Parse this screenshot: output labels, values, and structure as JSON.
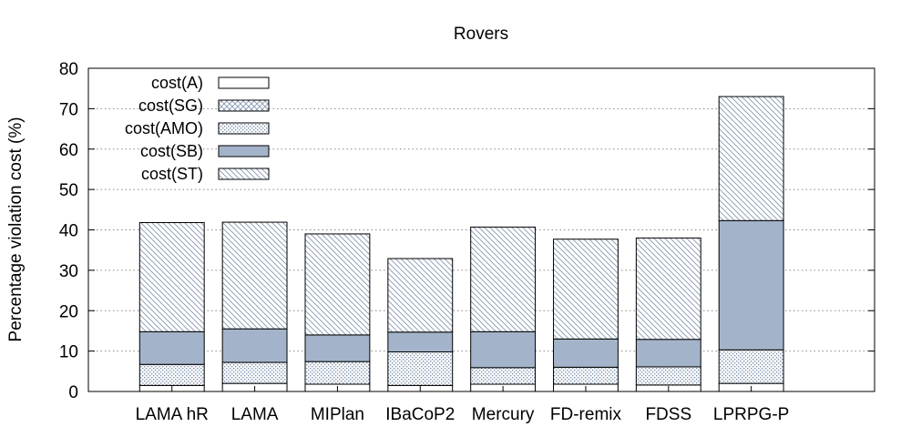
{
  "chart_data": {
    "type": "bar",
    "stacked": true,
    "title": "Rovers",
    "ylabel": "Percentage violation cost (%)",
    "xlabel": "",
    "ylim": [
      0,
      80
    ],
    "yticks": [
      0,
      10,
      20,
      30,
      40,
      50,
      60,
      70,
      80
    ],
    "grid": "horizontal dotted",
    "legend_position": "top-left",
    "categories": [
      "LAMA hR",
      "LAMA",
      "MIPlan",
      "IBaCoP2",
      "Mercury",
      "FD-remix",
      "FDSS",
      "LPRPG-P"
    ],
    "series": [
      {
        "name": "cost(A)",
        "pattern": "white",
        "values": [
          1.5,
          2.0,
          1.8,
          1.5,
          1.8,
          1.8,
          1.6,
          2.0
        ]
      },
      {
        "name": "cost(SG)",
        "pattern": "crosshatch",
        "values": [
          0,
          0,
          0,
          0,
          0,
          0,
          0,
          0
        ]
      },
      {
        "name": "cost(AMO)",
        "pattern": "dots",
        "values": [
          5.2,
          5.2,
          5.6,
          8.3,
          4.1,
          4.2,
          4.5,
          8.3
        ]
      },
      {
        "name": "cost(SB)",
        "pattern": "solid",
        "values": [
          8.1,
          8.3,
          6.6,
          4.9,
          8.9,
          7.0,
          6.8,
          32.0
        ]
      },
      {
        "name": "cost(ST)",
        "pattern": "diagonal",
        "values": [
          27.0,
          26.4,
          25.0,
          18.2,
          25.9,
          24.7,
          25.1,
          30.7
        ]
      }
    ],
    "colors": {
      "solid": "#a3b4ca",
      "pattern_stroke": "#7f93ad",
      "frame": "#000000",
      "grid": "#888888"
    }
  }
}
